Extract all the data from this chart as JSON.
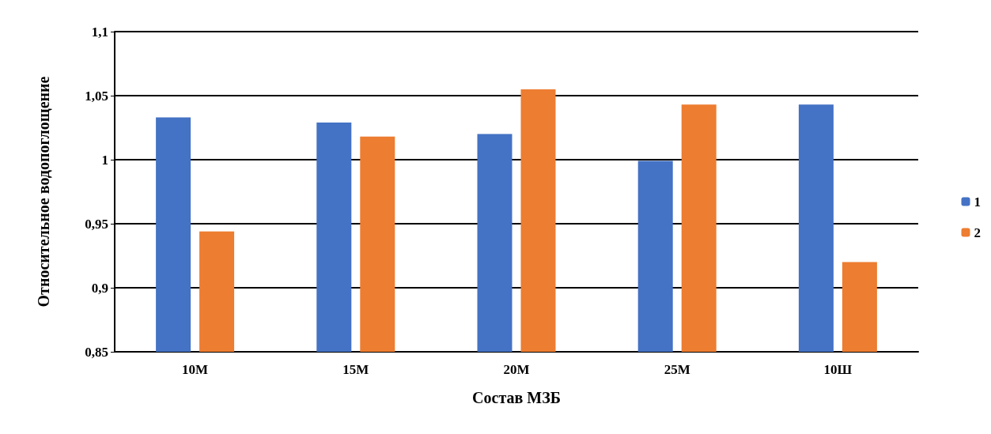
{
  "chart_data": {
    "type": "bar",
    "xlabel": "Состав МЗБ",
    "ylabel": "Относительное водопоглощение",
    "categories": [
      "10М",
      "15М",
      "20М",
      "25М",
      "10Ш"
    ],
    "series": [
      {
        "name": "1",
        "color": "#4472c4",
        "values": [
          1.033,
          1.029,
          1.02,
          0.999,
          1.043
        ]
      },
      {
        "name": "2",
        "color": "#ed7d31",
        "values": [
          0.944,
          1.018,
          1.055,
          1.043,
          0.92
        ]
      }
    ],
    "ylim": [
      0.85,
      1.1
    ],
    "yticks": [
      {
        "value": 0.85,
        "label": "0,85"
      },
      {
        "value": 0.9,
        "label": "0,9"
      },
      {
        "value": 0.95,
        "label": "0,95"
      },
      {
        "value": 1,
        "label": "1"
      },
      {
        "value": 1.05,
        "label": "1,05"
      },
      {
        "value": 1.1,
        "label": "1,1"
      }
    ],
    "grid": "y",
    "legend": "right"
  }
}
